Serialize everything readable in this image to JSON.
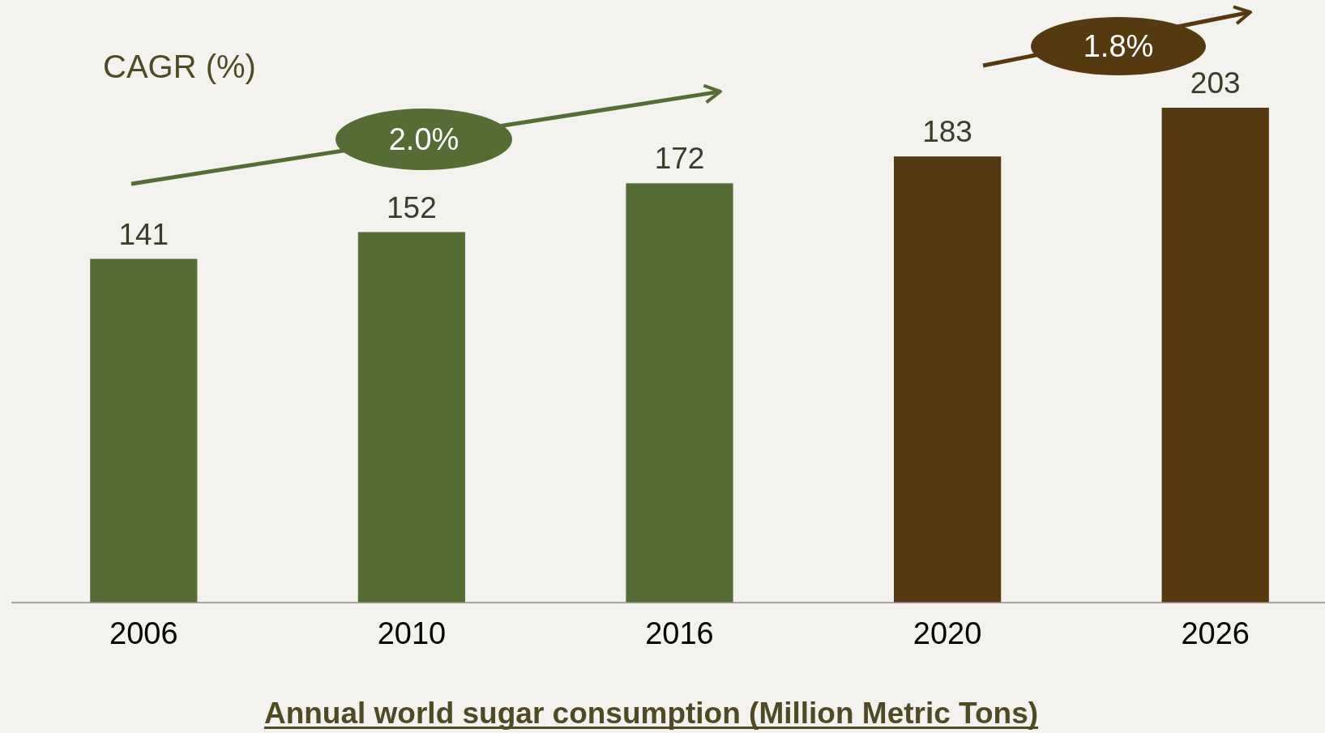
{
  "chart_data": {
    "type": "bar",
    "title": "Annual world sugar consumption (Million Metric Tons)",
    "categories": [
      "2006",
      "2010",
      "2016",
      "2020",
      "2026"
    ],
    "values": [
      141,
      152,
      172,
      183,
      203
    ],
    "colors": [
      "#556d34",
      "#556d34",
      "#556d34",
      "#553a11",
      "#553a11"
    ],
    "data_labels": true,
    "annotations": [
      "CAGR (%)",
      "2.0%",
      "1.8%"
    ]
  }
}
